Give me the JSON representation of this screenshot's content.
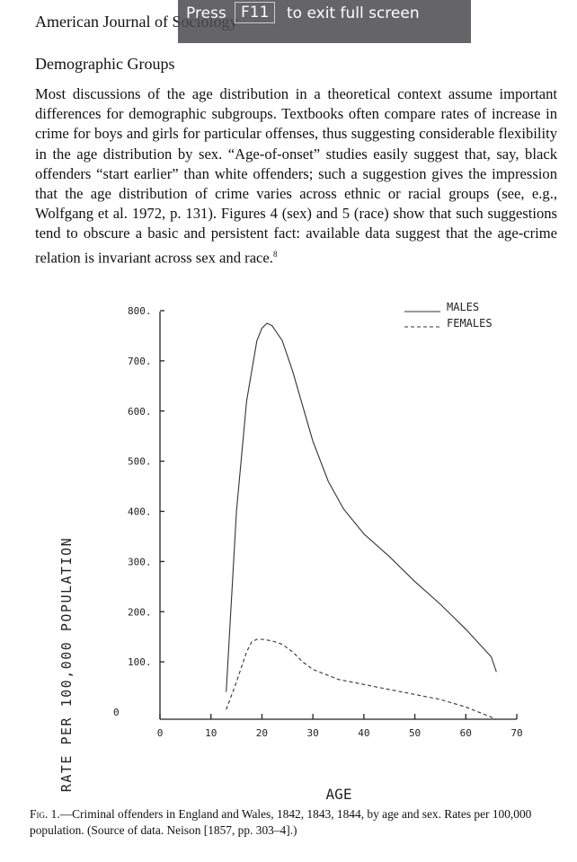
{
  "header": {
    "journal": "American Journal of Sociology"
  },
  "overlay": {
    "before": "Press",
    "key": "F11",
    "after": "to exit full screen"
  },
  "section": {
    "heading": "Demographic Groups"
  },
  "body": {
    "paragraph": "Most discussions of the age distribution in a theoretical context assume important differences for demographic subgroups. Textbooks often compare rates of increase in crime for boys and girls for particular offenses, thus suggesting considerable flexibility in the age distribution by sex. “Age-of-onset” studies easily suggest that, say, black offenders “start earlier” than white offenders; such a suggestion gives the impression that the age distribution of crime varies across ethnic or racial groups (see, e.g., Wolfgang et al. 1972, p. 131). Figures 4 (sex) and 5 (race) show that such suggestions tend to obscure a basic and persistent fact: available data suggest that the age-crime relation is invariant across sex and race.",
    "footnote_mark": "8"
  },
  "chart_data": {
    "type": "line",
    "title": "",
    "xlabel": "AGE",
    "ylabel": "RATE PER 100,000 POPULATION",
    "xlim": [
      0,
      70
    ],
    "ylim": [
      0,
      800
    ],
    "x_ticks": [
      "0",
      "10",
      "20",
      "30",
      "40",
      "50",
      "60",
      "70"
    ],
    "y_ticks": [
      "0",
      "100.",
      "200.",
      "300.",
      "400.",
      "500.",
      "600.",
      "700.",
      "800."
    ],
    "legend_position": "top-right",
    "series": [
      {
        "name": "MALES",
        "style": "solid",
        "x": [
          13,
          15,
          17,
          19,
          20,
          21,
          22,
          24,
          26,
          28,
          30,
          33,
          36,
          40,
          45,
          50,
          55,
          60,
          65,
          66
        ],
        "y": [
          40,
          400,
          620,
          740,
          765,
          775,
          770,
          740,
          680,
          610,
          540,
          460,
          405,
          355,
          310,
          260,
          215,
          165,
          110,
          80
        ]
      },
      {
        "name": "FEMALES",
        "style": "dashed",
        "x": [
          13,
          15,
          17,
          18,
          19,
          20,
          22,
          24,
          26,
          28,
          30,
          35,
          40,
          45,
          50,
          55,
          60,
          65,
          66
        ],
        "y": [
          5,
          60,
          120,
          140,
          145,
          145,
          142,
          135,
          120,
          100,
          85,
          65,
          55,
          45,
          35,
          25,
          10,
          -10,
          -15
        ]
      }
    ]
  },
  "caption": {
    "label": "Fig. 1.",
    "text": "—Criminal offenders in England and Wales, 1842, 1843, 1844, by age and sex. Rates per 100,000 population. (Source of data. Neison [1857, pp. 303–4].)"
  }
}
